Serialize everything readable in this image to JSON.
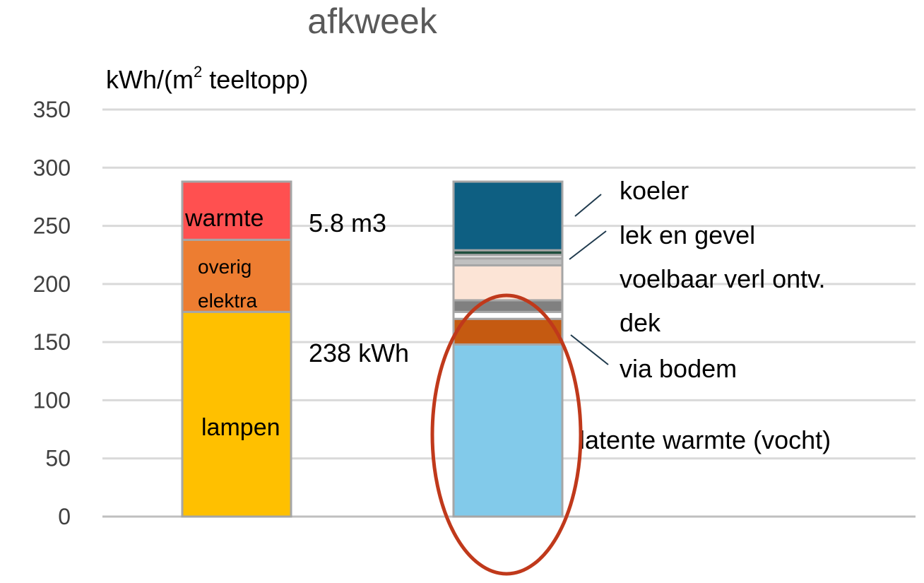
{
  "chart_data": {
    "type": "bar",
    "stacked": true,
    "title": "afkweek",
    "ylabel_prefix": "kWh/(m",
    "ylabel_sup": "2",
    "ylabel_suffix": " teeltopp)",
    "ylim": [
      0,
      350
    ],
    "yticks": [
      "0",
      "50",
      "100",
      "150",
      "200",
      "250",
      "300",
      "350"
    ],
    "grid": true,
    "bars": [
      {
        "segments": [
          {
            "name": "lampen",
            "value": 176,
            "color": "#FFC000",
            "label": "lampen"
          },
          {
            "name": "overig elektra",
            "value": 62,
            "color": "#ED7D31",
            "label_lines": [
              "overig",
              "elektra"
            ]
          },
          {
            "name": "warmte",
            "value": 50,
            "color": "#FF5050",
            "label": "warmte"
          }
        ]
      },
      {
        "segments": [
          {
            "name": "latente warmte (vocht)",
            "value": 148,
            "color": "#82CAEA"
          },
          {
            "name": "via bodem",
            "value": 22,
            "color": "#C55A11"
          },
          {
            "name": "dek",
            "value": 6,
            "color": "#FFFFFF"
          },
          {
            "name": "dek",
            "value": 10,
            "color": "#808080"
          },
          {
            "name": "voelbaar verl ontv.",
            "value": 30,
            "color": "#FCE4D6"
          },
          {
            "name": "lek en gevel",
            "value": 6,
            "color": "#C0C0C0"
          },
          {
            "name": "lek en gevel",
            "value": 3,
            "color": "#E7E6E6"
          },
          {
            "name": "lek en gevel",
            "value": 4,
            "color": "#1F4E3D"
          },
          {
            "name": "koeler",
            "value": 59,
            "color": "#0E5F82"
          }
        ]
      }
    ],
    "annotations": {
      "gas": "5.8 m3",
      "electricity": "238 kWh"
    },
    "legend_labels": {
      "koeler": "koeler",
      "lek_en_gevel": "lek en gevel",
      "voelbaar": "voelbaar verl ontv.",
      "dek": "dek",
      "via_bodem": "via bodem",
      "latente": "latente warmte (vocht)"
    },
    "highlight_color": "#C0391B"
  }
}
